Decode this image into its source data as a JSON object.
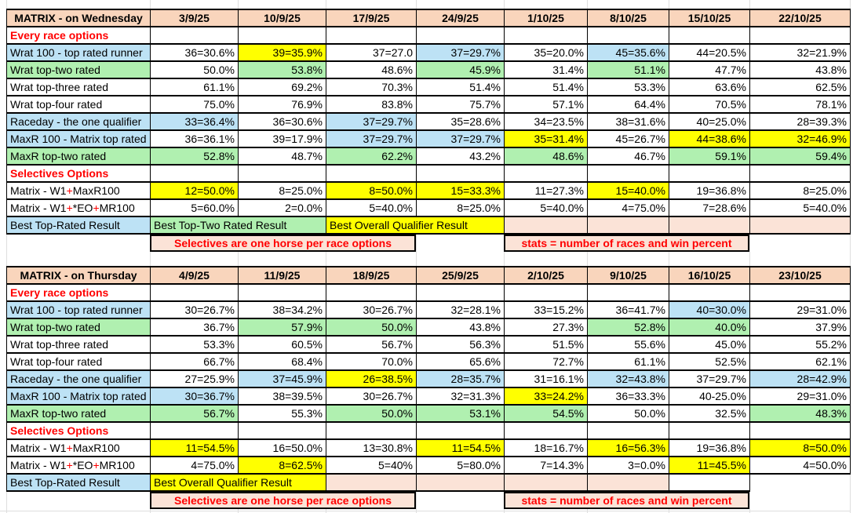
{
  "colors": {
    "salmon": "#F9D5BC",
    "pink": "#FBE3D7",
    "blue": "#BDE2F5",
    "green": "#B0F0B0",
    "yellow": "#FFFF00",
    "red": "#FF0000",
    "grid": "#DEDEDE",
    "border": "#000000"
  },
  "tables": [
    {
      "title": "MATRIX - on Wednesday",
      "dates": [
        "3/9/25",
        "10/9/25",
        "17/9/25",
        "24/9/25",
        "1/10/25",
        "8/10/25",
        "15/10/25",
        "22/10/25"
      ],
      "rows": [
        {
          "kind": "section",
          "label": "Every race options"
        },
        {
          "kind": "data",
          "label": "Wrat 100 - top rated runner",
          "lbg": "blue",
          "cells": [
            [
              "36=30.6%"
            ],
            [
              "39=35.9%",
              "yellow"
            ],
            [
              "37=27.0"
            ],
            [
              "37=29.7%",
              "blue"
            ],
            [
              "35=20.0%"
            ],
            [
              "45=35.6%",
              "blue"
            ],
            [
              "44=20.5%"
            ],
            [
              "32=21.9%"
            ]
          ]
        },
        {
          "kind": "data",
          "label": "Wrat top-two rated",
          "lbg": "green",
          "cells": [
            [
              "50.0%"
            ],
            [
              "53.8%",
              "green"
            ],
            [
              "48.6%"
            ],
            [
              "45.9%",
              "green"
            ],
            [
              "31.4%"
            ],
            [
              "51.1%",
              "green"
            ],
            [
              "47.7%"
            ],
            [
              "43.8%"
            ]
          ]
        },
        {
          "kind": "data",
          "label": "Wrat top-three rated",
          "lbg": null,
          "cells": [
            [
              "61.1%"
            ],
            [
              "69.2%"
            ],
            [
              "70.3%"
            ],
            [
              "51.4%"
            ],
            [
              "51.4%"
            ],
            [
              "53.3%"
            ],
            [
              "63.6%"
            ],
            [
              "62.5%"
            ]
          ]
        },
        {
          "kind": "data",
          "label": "Wrat top-four rated",
          "lbg": null,
          "cells": [
            [
              "75.0%"
            ],
            [
              "76.9%"
            ],
            [
              "83.8%"
            ],
            [
              "75.7%"
            ],
            [
              "57.1%"
            ],
            [
              "64.4%"
            ],
            [
              "70.5%"
            ],
            [
              "78.1%"
            ]
          ]
        },
        {
          "kind": "data",
          "label": "Raceday - the one qualifier",
          "lbg": "blue",
          "cells": [
            [
              "33=36.4%",
              "blue"
            ],
            [
              "36=30.6%"
            ],
            [
              "37=29.7%",
              "blue"
            ],
            [
              "35=28.6%"
            ],
            [
              "34=23.5%"
            ],
            [
              "38=31.6%"
            ],
            [
              "40=25.0%"
            ],
            [
              "28=39.3%"
            ]
          ]
        },
        {
          "kind": "data",
          "label": "MaxR 100 - Matrix top rated",
          "lbg": "blue",
          "cells": [
            [
              "36=36.1%"
            ],
            [
              "39=17.9%"
            ],
            [
              "37=29.7%",
              "blue"
            ],
            [
              "37=29.7%",
              "blue"
            ],
            [
              "35=31.4%",
              "yellow"
            ],
            [
              "45=26.7%"
            ],
            [
              "44=38.6%",
              "yellow"
            ],
            [
              "32=46.9%",
              "yellow"
            ]
          ]
        },
        {
          "kind": "data",
          "label": "MaxR top-two rated",
          "lbg": "green",
          "cells": [
            [
              "52.8%",
              "green"
            ],
            [
              "48.7%"
            ],
            [
              "62.2%",
              "green"
            ],
            [
              "43.2%"
            ],
            [
              "48.6%",
              "green"
            ],
            [
              "46.7%"
            ],
            [
              "59.1%",
              "green"
            ],
            [
              "59.4%",
              "green"
            ]
          ]
        },
        {
          "kind": "section",
          "label": "Selectives Options"
        },
        {
          "kind": "data",
          "label": "Matrix - W1+MaxR100",
          "label_parts": [
            [
              "Matrix - W1",
              0
            ],
            [
              "+",
              1
            ],
            [
              "MaxR100",
              0
            ]
          ],
          "lbg": null,
          "cells": [
            [
              "12=50.0%",
              "yellow"
            ],
            [
              "8=25.0%"
            ],
            [
              "8=50.0%",
              "yellow"
            ],
            [
              "15=33.3%",
              "yellow"
            ],
            [
              "11=27.3%"
            ],
            [
              "15=40.0%",
              "yellow"
            ],
            [
              "19=36.8%"
            ],
            [
              "8=25.0%"
            ]
          ]
        },
        {
          "kind": "data",
          "label": "Matrix - W1+*EO+MR100",
          "label_parts": [
            [
              "Matrix - W1",
              0
            ],
            [
              "+",
              1
            ],
            [
              "*EO",
              0
            ],
            [
              "+",
              1
            ],
            [
              "MR100",
              0
            ]
          ],
          "lbg": null,
          "cells": [
            [
              "5=60.0%"
            ],
            [
              "2=0.0%"
            ],
            [
              "5=40.0%"
            ],
            [
              "8=25.0%"
            ],
            [
              "5=40.0%"
            ],
            [
              "4=75.0%"
            ],
            [
              "7=28.6%"
            ],
            [
              "5=40.0%"
            ]
          ]
        },
        {
          "kind": "best",
          "cells": [
            {
              "text": "Best Top-Rated Result",
              "bg": "blue",
              "span": 0
            },
            {
              "text": "Best Top-Two Rated Result",
              "bg": "green",
              "span": 2
            },
            {
              "text": "Best Overall Qualifier Result",
              "bg": "yellow",
              "span": 2
            },
            {
              "text": "",
              "bg": "pink",
              "span": 1
            },
            {
              "text": "",
              "bg": "pink",
              "span": 1
            },
            {
              "text": "",
              "bg": "pink",
              "span": 1
            },
            {
              "text": "",
              "bg": "pink",
              "span": 1
            }
          ]
        }
      ],
      "footer": [
        {
          "span": 1
        },
        {
          "span": 3,
          "text": "Selectives are one horse per race options"
        },
        {
          "span": 1
        },
        {
          "span": 3,
          "text": "stats = number of races and win percent"
        },
        {
          "span": 1
        }
      ]
    },
    {
      "title": "MATRIX - on Thursday",
      "dates": [
        "4/9/25",
        "11/9/25",
        "18/9/25",
        "25/9/25",
        "2/10/25",
        "9/10/25",
        "16/10/25",
        "23/10/25"
      ],
      "rows": [
        {
          "kind": "section",
          "label": "Every race options"
        },
        {
          "kind": "data",
          "label": "Wrat 100 - top rated runner",
          "lbg": "blue",
          "cells": [
            [
              "30=26.7%"
            ],
            [
              "38=34.2%"
            ],
            [
              "30=26.7%"
            ],
            [
              "32=28.1%"
            ],
            [
              "33=15.2%"
            ],
            [
              "36=41.7%"
            ],
            [
              "40=30.0%",
              "blue"
            ],
            [
              "29=31.0%"
            ]
          ]
        },
        {
          "kind": "data",
          "label": "Wrat top-two rated",
          "lbg": "green",
          "cells": [
            [
              "36.7%"
            ],
            [
              "57.9%",
              "green"
            ],
            [
              "50.0%",
              "green"
            ],
            [
              "43.8%"
            ],
            [
              "27.3%"
            ],
            [
              "52.8%",
              "green"
            ],
            [
              "40.0%",
              "green"
            ],
            [
              "37.9%"
            ]
          ]
        },
        {
          "kind": "data",
          "label": "Wrat top-three rated",
          "lbg": null,
          "cells": [
            [
              "53.3%"
            ],
            [
              "60.5%"
            ],
            [
              "56.7%"
            ],
            [
              "56.3%"
            ],
            [
              "51.5%"
            ],
            [
              "55.6%"
            ],
            [
              "45.0%"
            ],
            [
              "55.2%"
            ]
          ]
        },
        {
          "kind": "data",
          "label": "Wrat top-four rated",
          "lbg": null,
          "cells": [
            [
              "66.7%"
            ],
            [
              "68.4%"
            ],
            [
              "70.0%"
            ],
            [
              "65.6%"
            ],
            [
              "72.7%"
            ],
            [
              "61.1%"
            ],
            [
              "52.5%"
            ],
            [
              "62.1%"
            ]
          ]
        },
        {
          "kind": "data",
          "label": "Raceday - the one qualifier",
          "lbg": "blue",
          "cells": [
            [
              "27=25.9%"
            ],
            [
              "37=45.9%",
              "blue"
            ],
            [
              "26=38.5%",
              "yellow"
            ],
            [
              "28=35.7%",
              "blue"
            ],
            [
              "31=16.1%"
            ],
            [
              "32=43.8%",
              "blue"
            ],
            [
              "37=29.7%"
            ],
            [
              "28=42.9%",
              "blue"
            ]
          ]
        },
        {
          "kind": "data",
          "label": "MaxR 100 - Matrix top rated",
          "lbg": "blue",
          "cells": [
            [
              "30=36.7%",
              "blue"
            ],
            [
              "38=39.5%"
            ],
            [
              "30=26.7%"
            ],
            [
              "32=31.3%"
            ],
            [
              "33=24.2%",
              "yellow"
            ],
            [
              "36=33.3%"
            ],
            [
              "40-25.0%"
            ],
            [
              "29=31.0%"
            ]
          ]
        },
        {
          "kind": "data",
          "label": "MaxR top-two rated",
          "lbg": "green",
          "cells": [
            [
              "56.7%",
              "green"
            ],
            [
              "55.3%"
            ],
            [
              "50.0%",
              "green"
            ],
            [
              "53.1%",
              "green"
            ],
            [
              "54.5%",
              "green"
            ],
            [
              "50.0%"
            ],
            [
              "32.5%"
            ],
            [
              "48.3%",
              "green"
            ]
          ]
        },
        {
          "kind": "section",
          "label": "Selectives Options"
        },
        {
          "kind": "data",
          "label": "Matrix - W1+MaxR100",
          "label_parts": [
            [
              "Matrix - W1",
              0
            ],
            [
              "+",
              1
            ],
            [
              "MaxR100",
              0
            ]
          ],
          "lbg": null,
          "cells": [
            [
              "11=54.5%",
              "yellow"
            ],
            [
              "16=50.0%"
            ],
            [
              "13=30.8%"
            ],
            [
              "11=54.5%",
              "yellow"
            ],
            [
              "18=16.7%"
            ],
            [
              "16=56.3%",
              "yellow"
            ],
            [
              "19=36.8%"
            ],
            [
              "8=50.0%",
              "yellow"
            ]
          ]
        },
        {
          "kind": "data",
          "label": "Matrix - W1+*EO+MR100",
          "label_parts": [
            [
              "Matrix - W1",
              0
            ],
            [
              "+",
              1
            ],
            [
              "*EO",
              0
            ],
            [
              "+",
              1
            ],
            [
              "MR100",
              0
            ]
          ],
          "lbg": null,
          "cells": [
            [
              "4=75.0%"
            ],
            [
              "8=62.5%",
              "yellow"
            ],
            [
              "5=40%"
            ],
            [
              "5=80.0%"
            ],
            [
              "7=14.3%"
            ],
            [
              "3=0.0%"
            ],
            [
              "11=45.5%",
              "yellow"
            ],
            [
              "4=50.0%"
            ]
          ]
        },
        {
          "kind": "best",
          "cells": [
            {
              "text": "Best Top-Rated Result",
              "bg": "blue",
              "span": 0
            },
            {
              "text": "Best Overall Qualifier Result",
              "bg": "yellow",
              "span": 2
            },
            {
              "text": "",
              "bg": "pink",
              "span": 1
            },
            {
              "text": "",
              "bg": "pink",
              "span": 1
            },
            {
              "text": "",
              "bg": "pink",
              "span": 1
            },
            {
              "text": "",
              "bg": "pink",
              "span": 1
            },
            {
              "text": "",
              "bg": null,
              "span": 1
            }
          ]
        }
      ],
      "footer": [
        {
          "span": 1
        },
        {
          "span": 3,
          "text": "Selectives are one horse per race options"
        },
        {
          "span": 1
        },
        {
          "span": 3,
          "text": "stats = number of races and win percent"
        },
        {
          "span": 1
        }
      ]
    }
  ]
}
